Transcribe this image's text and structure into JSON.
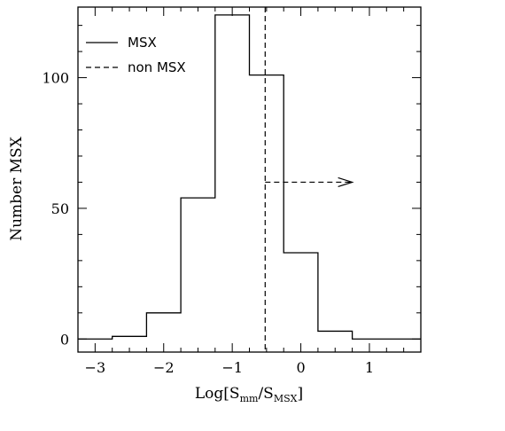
{
  "chart_data": {
    "type": "histogram",
    "xlabel": {
      "main": "Log[S",
      "sub1": "mm",
      "mid": "/S",
      "sub2": "MSX",
      "end": "]"
    },
    "ylabel": "Number MSX",
    "xlim": [
      -3.25,
      1.75
    ],
    "ylim": [
      -5,
      127
    ],
    "x_ticks": [
      -3,
      -2,
      -1,
      0,
      1
    ],
    "x_tick_labels": [
      "−3",
      "−2",
      "−1",
      "0",
      "1"
    ],
    "x_minor_step": 0.25,
    "y_ticks": [
      0,
      50,
      100
    ],
    "y_tick_labels": [
      "0",
      "50",
      "100"
    ],
    "y_minor_step": 10,
    "series": [
      {
        "name": "MSX",
        "style": "solid",
        "bin_edges": [
          -3.25,
          -2.75,
          -2.25,
          -1.75,
          -1.25,
          -0.75,
          -0.25,
          0.25,
          0.75,
          1.75
        ],
        "counts": [
          0,
          1,
          10,
          54,
          124,
          101,
          33,
          3,
          0
        ]
      },
      {
        "name": "non MSX",
        "style": "dashed",
        "vertical_line_x": -0.52,
        "arrow": {
          "x_start": -0.52,
          "x_end": 0.75,
          "y": 60
        }
      }
    ],
    "legend": {
      "position": "top-left",
      "entries": [
        "MSX",
        "non MSX"
      ]
    }
  }
}
